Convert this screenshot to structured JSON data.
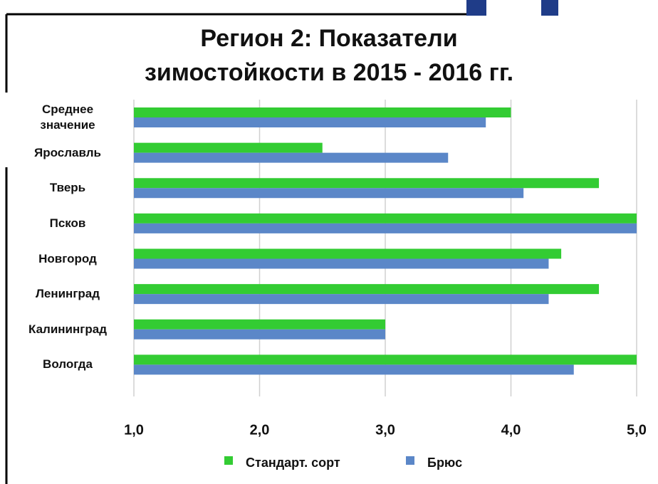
{
  "chart_data": {
    "type": "barh",
    "title": [
      "Регион 2: Показатели",
      "зимостойкости в 2015 - 2016 гг."
    ],
    "categories": [
      "Среднее значение",
      "Ярославль",
      "Тверь",
      "Псков",
      "Новгород",
      "Ленинград",
      "Калининград",
      "Вологда"
    ],
    "series": [
      {
        "name": "Стандарт. сорт",
        "color": "#33cc33",
        "values": [
          4.0,
          2.5,
          4.7,
          5.0,
          4.4,
          4.7,
          3.0,
          5.0
        ]
      },
      {
        "name": "Брюс",
        "color": "#5b87c8",
        "values": [
          3.8,
          3.5,
          4.1,
          5.0,
          4.3,
          4.3,
          3.0,
          4.5
        ]
      }
    ],
    "xlim": [
      1,
      5
    ],
    "xticks": [
      {
        "value": 1,
        "label": "1,0"
      },
      {
        "value": 2,
        "label": "2,0"
      },
      {
        "value": 3,
        "label": "3,0"
      },
      {
        "value": 4,
        "label": "4,0"
      },
      {
        "value": 5,
        "label": "5,0"
      }
    ],
    "grid": true
  }
}
